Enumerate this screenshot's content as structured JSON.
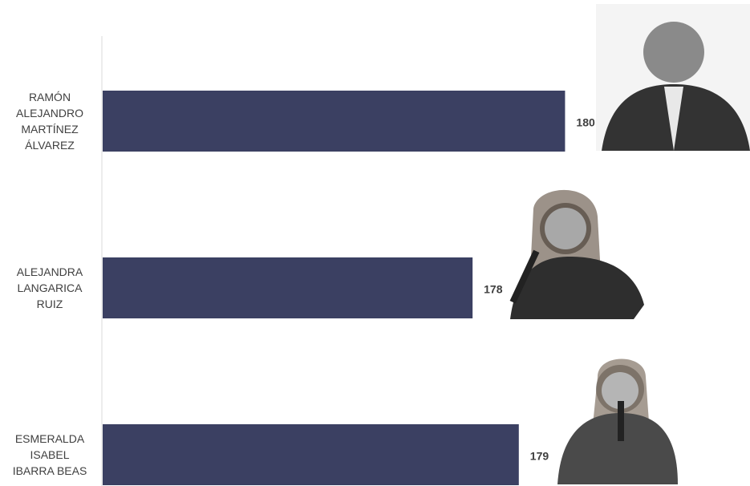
{
  "chart_data": {
    "type": "barh",
    "categories": [
      "RAMÓN ALEJANDRO MARTÍNEZ ÁLVAREZ",
      "ALEJANDRA LANGARICA RUIZ",
      "ESMERALDA ISABEL IBARRA BEAS"
    ],
    "values": [
      180,
      178,
      179
    ],
    "color": "#3b4062",
    "xlim": [
      170,
      184
    ]
  }
}
